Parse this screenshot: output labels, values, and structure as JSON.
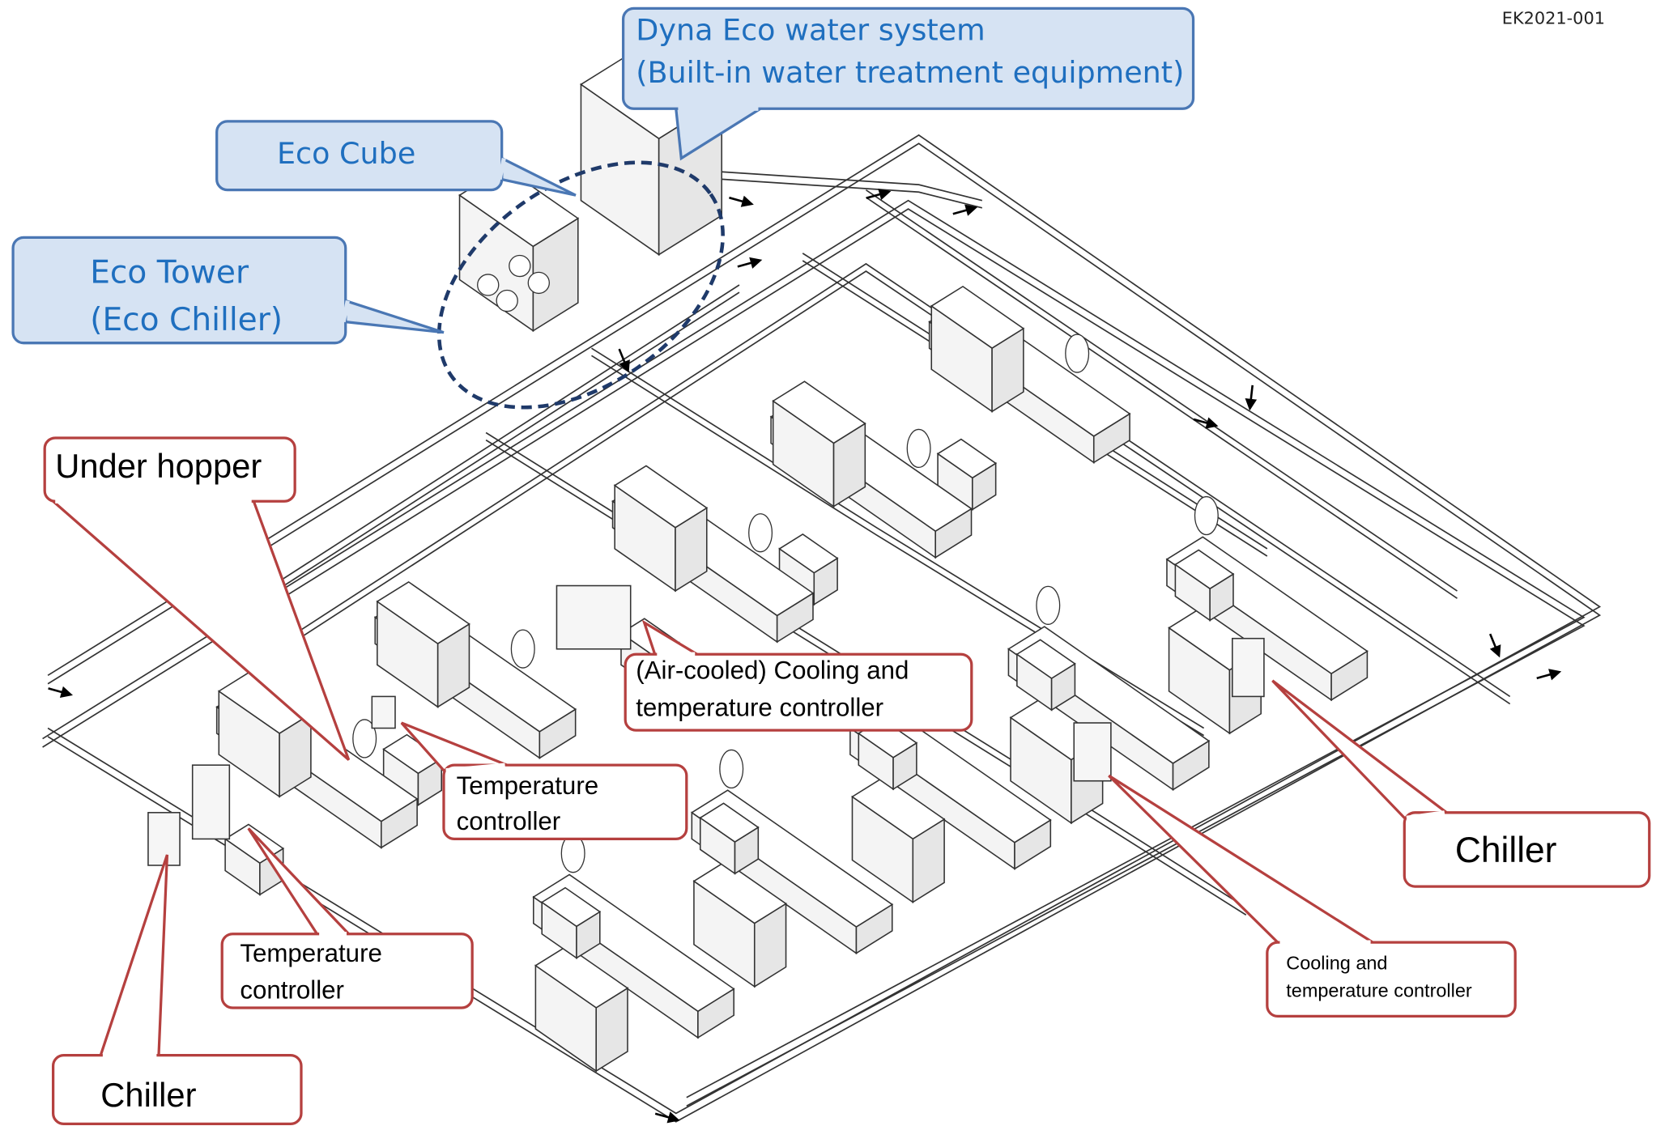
{
  "code": "EK2021-001",
  "callouts": [
    {
      "lines": [
        "Dyna Eco water system",
        "(Built-in water treatment equipment)"
      ]
    },
    {
      "lines": [
        "Eco Cube"
      ]
    },
    {
      "lines": [
        "Eco Tower",
        "(Eco Chiller)"
      ]
    },
    {
      "lines": [
        "Under hopper"
      ]
    },
    {
      "lines": [
        "(Air-cooled) Cooling and",
        "temperature controller"
      ]
    },
    {
      "lines": [
        "Temperature",
        "controller"
      ]
    },
    {
      "lines": [
        "Temperature",
        "controller"
      ]
    },
    {
      "lines": [
        "Chiller"
      ]
    },
    {
      "lines": [
        "Chiller"
      ]
    },
    {
      "lines": [
        "Cooling and",
        "temperature controller"
      ]
    }
  ]
}
